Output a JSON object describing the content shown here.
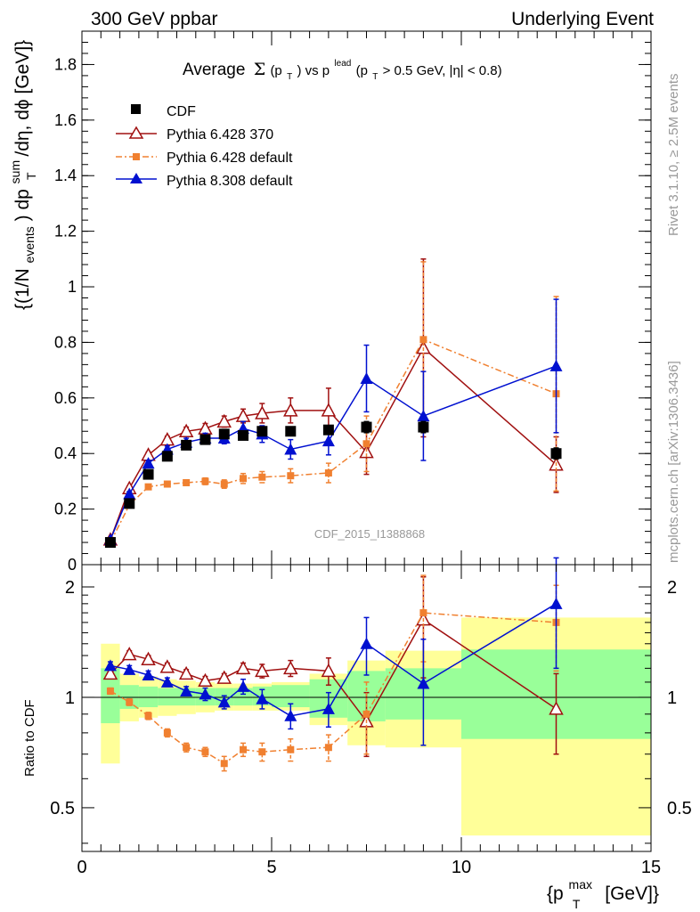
{
  "header": {
    "left": "300 GeV ppbar",
    "right": "Underlying Event"
  },
  "side_labels": {
    "rivet": "Rivet 3.1.10, ≥ 2.5M events",
    "mcplots": "mcplots.cern.ch [arXiv:1306.3436]"
  },
  "colors": {
    "cdf": "#000000",
    "py6_370": "#a01010",
    "py6_default": "#f08030",
    "py8": "#0010d0",
    "band_yellow": "#ffff99",
    "band_green": "#99ff99"
  },
  "chart_data": [
    {
      "type": "scatter",
      "panel": "main",
      "title": "Average Σ(p_T) vs p_T^lead (p_T > 0.5 GeV, |η| < 0.8)",
      "title_parts": {
        "prefix": "Average",
        "sigma": "Σ",
        "pt_open": "(p",
        "sub_t": "T",
        "pt_close": ") vs p",
        "sup_lead": "lead",
        "cut_open": " (p",
        "cut_rest": " > 0.5 GeV, |η| < 0.8)"
      },
      "ylabel": "{(1/N_events) dp_T^sum/dη, dϕ [GeV]}",
      "ylabel_parts": {
        "a": "{(1/N",
        "sub_events": "events",
        "b": ") dp",
        "sub_t": "T",
        "sup_sum": "sum",
        "c": "/dη, dϕ [GeV]}"
      },
      "watermark": "CDF_2015_I1388868",
      "xlim": [
        0,
        15
      ],
      "ylim": [
        0,
        1.92
      ],
      "y_ticks": [
        "0",
        "0.2",
        "0.4",
        "0.6",
        "0.8",
        "1",
        "1.2",
        "1.4",
        "1.6",
        "1.8"
      ],
      "y_tick_values": [
        0,
        0.2,
        0.4,
        0.6,
        0.8,
        1.0,
        1.2,
        1.4,
        1.6,
        1.8
      ],
      "legend_position": "top-left",
      "series": [
        {
          "name": "CDF",
          "style": "square-filled",
          "x": [
            0.75,
            1.25,
            1.75,
            2.25,
            2.75,
            3.25,
            3.75,
            4.25,
            4.75,
            5.5,
            6.5,
            7.5,
            9.0,
            12.5
          ],
          "y": [
            0.08,
            0.22,
            0.325,
            0.39,
            0.43,
            0.45,
            0.47,
            0.465,
            0.48,
            0.48,
            0.485,
            0.495,
            0.495,
            0.4
          ],
          "yerr": [
            0.004,
            0.006,
            0.008,
            0.008,
            0.009,
            0.01,
            0.01,
            0.01,
            0.012,
            0.012,
            0.015,
            0.02,
            0.02,
            0.02
          ]
        },
        {
          "name": "Pythia 6.428 370",
          "style": "triangle-open",
          "x": [
            0.75,
            1.25,
            1.75,
            2.25,
            2.75,
            3.25,
            3.75,
            4.25,
            4.75,
            5.5,
            6.5,
            7.5,
            9.0,
            12.5
          ],
          "y": [
            0.09,
            0.275,
            0.395,
            0.45,
            0.48,
            0.49,
            0.515,
            0.535,
            0.545,
            0.555,
            0.555,
            0.405,
            0.78,
            0.36
          ],
          "yerr": [
            0.005,
            0.008,
            0.01,
            0.012,
            0.015,
            0.018,
            0.02,
            0.025,
            0.035,
            0.045,
            0.08,
            0.08,
            0.32,
            0.1
          ]
        },
        {
          "name": "Pythia 6.428 default",
          "style": "square-small",
          "x": [
            0.75,
            1.25,
            1.75,
            2.25,
            2.75,
            3.25,
            3.75,
            4.25,
            4.75,
            5.5,
            6.5,
            7.5,
            9.0,
            12.5
          ],
          "y": [
            0.08,
            0.215,
            0.28,
            0.29,
            0.295,
            0.3,
            0.29,
            0.31,
            0.315,
            0.32,
            0.33,
            0.435,
            0.81,
            0.615
          ],
          "yerr": [
            0.004,
            0.007,
            0.008,
            0.009,
            0.01,
            0.012,
            0.015,
            0.018,
            0.02,
            0.025,
            0.035,
            0.1,
            0.28,
            0.35
          ]
        },
        {
          "name": "Pythia 8.308 default",
          "style": "triangle-filled",
          "x": [
            0.75,
            1.25,
            1.75,
            2.25,
            2.75,
            3.25,
            3.75,
            4.25,
            4.75,
            5.5,
            6.5,
            7.5,
            9.0,
            12.5
          ],
          "y": [
            0.09,
            0.255,
            0.365,
            0.415,
            0.44,
            0.455,
            0.455,
            0.49,
            0.47,
            0.415,
            0.445,
            0.67,
            0.535,
            0.715
          ],
          "yerr": [
            0.005,
            0.008,
            0.01,
            0.012,
            0.015,
            0.018,
            0.02,
            0.025,
            0.03,
            0.035,
            0.05,
            0.12,
            0.16,
            0.24
          ]
        }
      ]
    },
    {
      "type": "scatter",
      "panel": "ratio",
      "ylabel": "Ratio to CDF",
      "xlabel": "{p_T^max [GeV]}",
      "xlabel_parts": {
        "a": "{p",
        "sub_t": "T",
        "sup_max": "max",
        "b": " [GeV]}"
      },
      "xlim": [
        0,
        15
      ],
      "ylim": [
        0.38,
        2.3
      ],
      "log_y": true,
      "x_ticks": [
        "0",
        "5",
        "10",
        "15"
      ],
      "x_tick_values": [
        0,
        5,
        10,
        15
      ],
      "y_ticks": [
        "0.5",
        "1",
        "2"
      ],
      "y_tick_values": [
        0.5,
        1,
        2
      ],
      "bands": {
        "x_edges": [
          0.5,
          1.0,
          1.5,
          2.0,
          2.5,
          3.0,
          3.5,
          4.0,
          4.5,
          5.0,
          6.0,
          7.0,
          8.0,
          10.0,
          15.0
        ],
        "yellow_lo": [
          0.66,
          0.86,
          0.88,
          0.89,
          0.9,
          0.91,
          0.92,
          0.92,
          0.92,
          0.92,
          0.84,
          0.74,
          0.73,
          0.42
        ],
        "yellow_hi": [
          1.4,
          1.16,
          1.14,
          1.12,
          1.11,
          1.1,
          1.09,
          1.09,
          1.09,
          1.1,
          1.16,
          1.26,
          1.34,
          1.65
        ],
        "green_lo": [
          0.85,
          0.93,
          0.94,
          0.95,
          0.95,
          0.95,
          0.95,
          0.95,
          0.95,
          0.94,
          0.88,
          0.86,
          0.87,
          0.77
        ],
        "green_hi": [
          1.2,
          1.08,
          1.07,
          1.06,
          1.06,
          1.06,
          1.06,
          1.06,
          1.07,
          1.08,
          1.12,
          1.18,
          1.2,
          1.35
        ]
      },
      "series": [
        {
          "name": "Pythia 6.428 370",
          "style": "triangle-open",
          "x": [
            0.75,
            1.25,
            1.75,
            2.25,
            2.75,
            3.25,
            3.75,
            4.25,
            4.75,
            5.5,
            6.5,
            7.5,
            9.0,
            12.5
          ],
          "y": [
            1.16,
            1.31,
            1.27,
            1.21,
            1.16,
            1.11,
            1.13,
            1.2,
            1.18,
            1.2,
            1.18,
            0.86,
            1.63,
            0.93
          ],
          "yerr": [
            0.03,
            0.03,
            0.03,
            0.03,
            0.03,
            0.03,
            0.03,
            0.04,
            0.05,
            0.06,
            0.1,
            0.17,
            0.5,
            0.23
          ]
        },
        {
          "name": "Pythia 6.428 default",
          "style": "square-small",
          "x": [
            0.75,
            1.25,
            1.75,
            2.25,
            2.75,
            3.25,
            3.75,
            4.25,
            4.75,
            5.5,
            6.5,
            7.5,
            9.0,
            12.5
          ],
          "y": [
            1.04,
            0.97,
            0.89,
            0.8,
            0.73,
            0.71,
            0.66,
            0.72,
            0.71,
            0.72,
            0.73,
            0.9,
            1.7,
            1.6
          ],
          "yerr": [
            0.02,
            0.02,
            0.02,
            0.02,
            0.02,
            0.02,
            0.03,
            0.03,
            0.04,
            0.05,
            0.06,
            0.2,
            0.45,
            0.42
          ]
        },
        {
          "name": "Pythia 8.308 default",
          "style": "triangle-filled",
          "x": [
            0.75,
            1.25,
            1.75,
            2.25,
            2.75,
            3.25,
            3.75,
            4.25,
            4.75,
            5.5,
            6.5,
            7.5,
            9.0,
            12.5
          ],
          "y": [
            1.22,
            1.19,
            1.15,
            1.1,
            1.04,
            1.02,
            0.97,
            1.07,
            0.99,
            0.89,
            0.93,
            1.4,
            1.09,
            1.8
          ],
          "yerr": [
            0.03,
            0.03,
            0.03,
            0.03,
            0.03,
            0.04,
            0.04,
            0.05,
            0.06,
            0.07,
            0.1,
            0.25,
            0.35,
            0.6
          ]
        }
      ]
    }
  ]
}
